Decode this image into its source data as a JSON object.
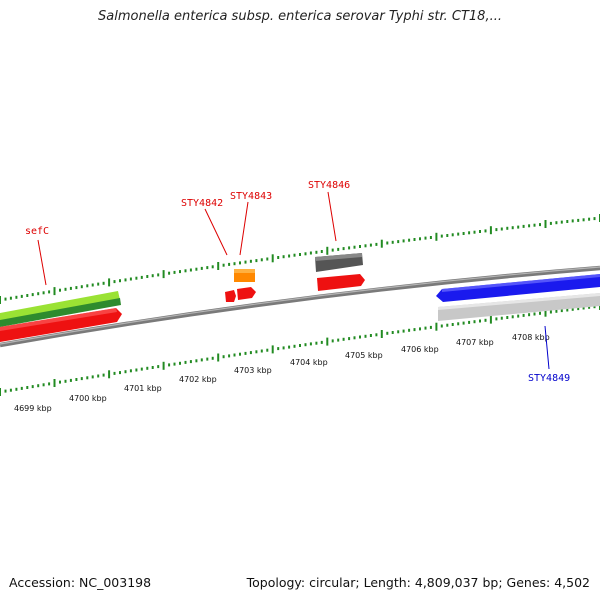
{
  "title": "Salmonella enterica subsp. enterica serovar Typhi str. CT18,...",
  "footer": {
    "accession": "Accession: NC_003198",
    "topology": "Topology: circular; Length: 4,809,037 bp; Genes: 4,502"
  },
  "scale_labels": [
    "4699 kbp",
    "4700 kbp",
    "4701 kbp",
    "4702 kbp",
    "4703 kbp",
    "4704 kbp",
    "4705 kbp",
    "4706 kbp",
    "4707 kbp",
    "4708 kbp"
  ],
  "gene_labels": [
    {
      "name": "sefC",
      "color": "#dd0000"
    },
    {
      "name": "STY4842",
      "color": "#dd0000"
    },
    {
      "name": "STY4843",
      "color": "#dd0000"
    },
    {
      "name": "STY4846",
      "color": "#dd0000"
    },
    {
      "name": "STY4849",
      "color": "#0000cc"
    }
  ],
  "colors": {
    "tick": "#228b22",
    "backbone": "#808080",
    "forward_gene": "#ee1111",
    "reverse_gene": "#1a1aee",
    "feature_green": "#66bb22",
    "feature_orange": "#ff8800",
    "feature_dark": "#555555",
    "feature_light": "#bbbbbb"
  }
}
